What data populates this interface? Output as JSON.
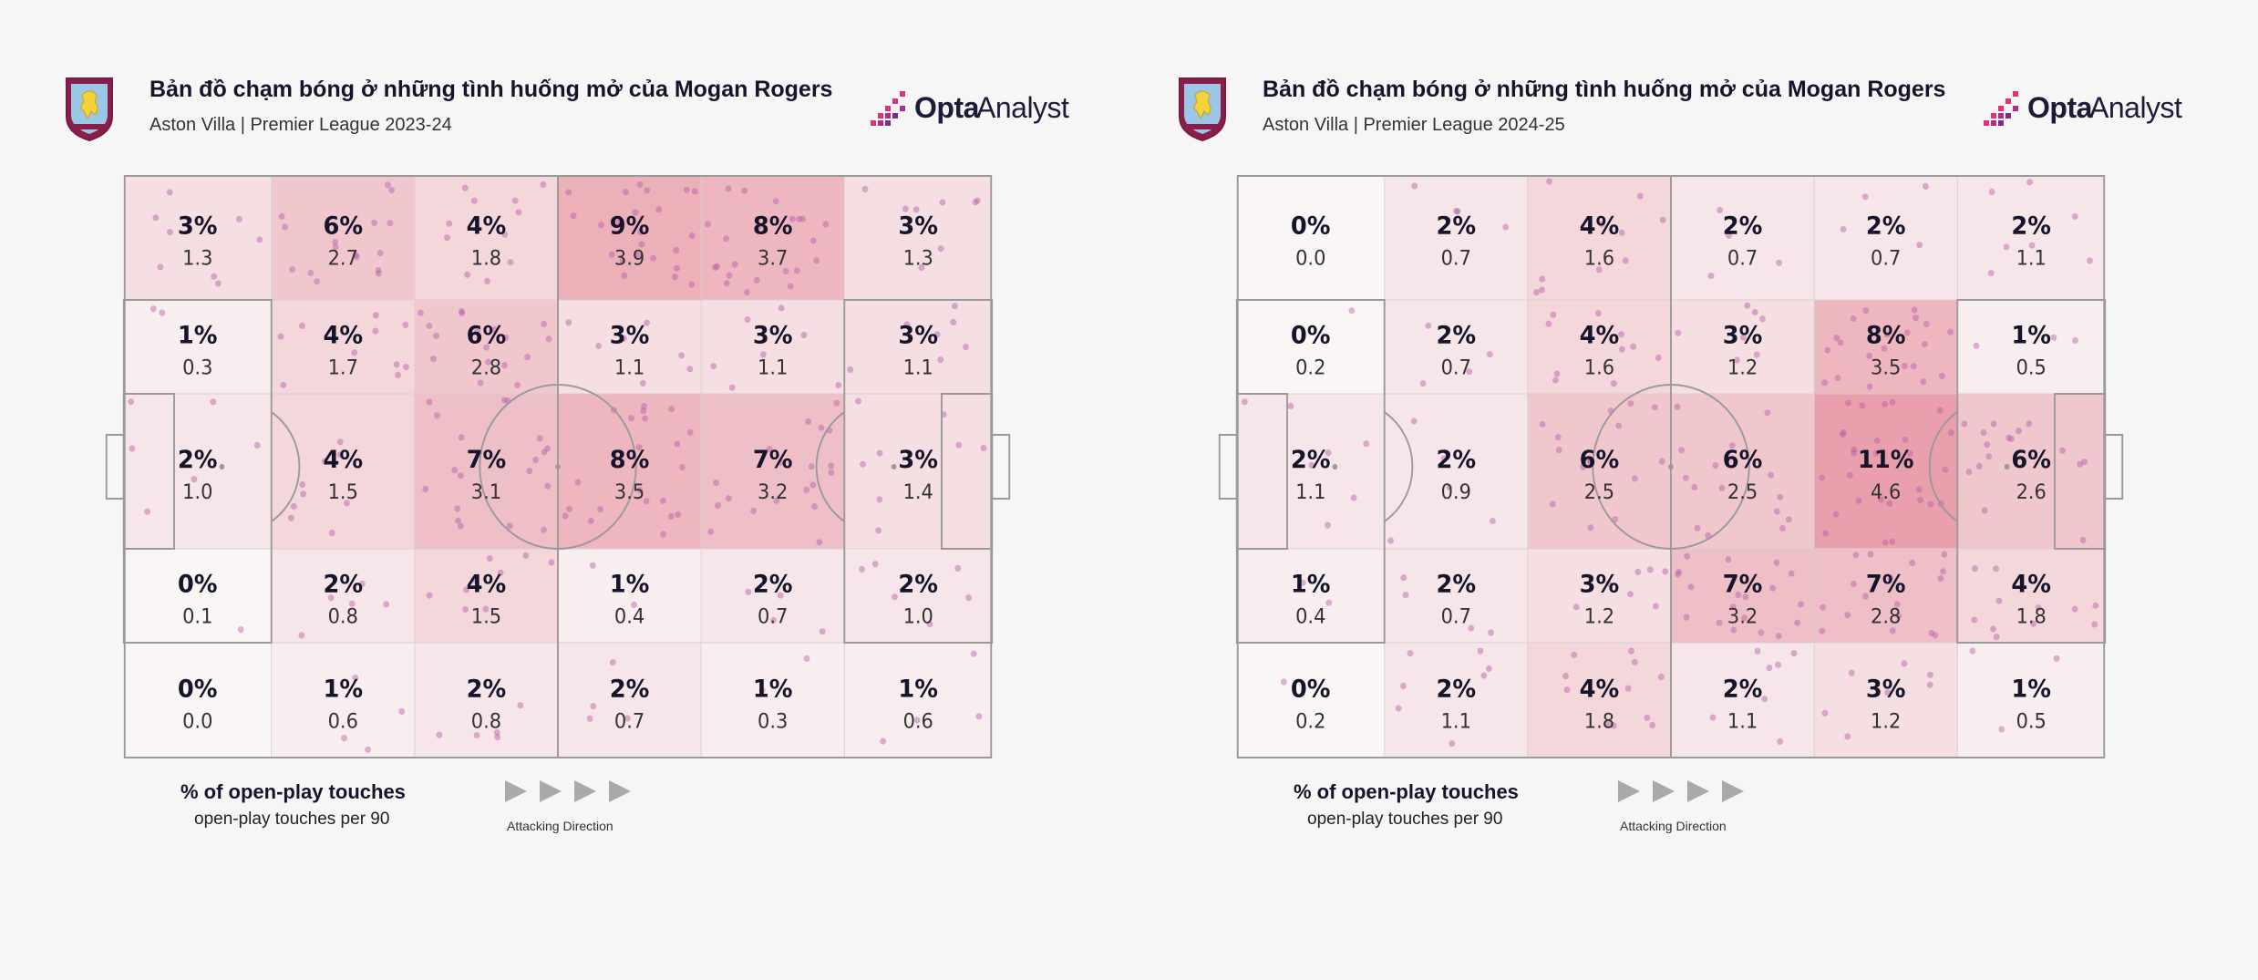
{
  "chart_data": [
    {
      "type": "heatmap",
      "title": "Bản đồ chạm bóng ở những tình huống mở của Mogan Rogers",
      "subtitle": "Aston Villa | Premier League 2023-24",
      "brand": "Opta Analyst",
      "brand_words": [
        "Opta",
        "Analyst"
      ],
      "legend_main": "% of open-play touches",
      "legend_sub": "open-play touches per 90",
      "direction_label": "Attacking Direction",
      "rows": [
        {
          "pct": [
            "3%",
            "6%",
            "4%",
            "9%",
            "8%",
            "3%"
          ],
          "per90": [
            "1.3",
            "2.7",
            "1.8",
            "3.9",
            "3.7",
            "1.3"
          ]
        },
        {
          "pct": [
            "1%",
            "4%",
            "6%",
            "3%",
            "3%",
            "3%"
          ],
          "per90": [
            "0.3",
            "1.7",
            "2.8",
            "1.1",
            "1.1",
            "1.1"
          ]
        },
        {
          "pct": [
            "2%",
            "4%",
            "7%",
            "8%",
            "7%",
            "3%"
          ],
          "per90": [
            "1.0",
            "1.5",
            "3.1",
            "3.5",
            "3.2",
            "1.4"
          ]
        },
        {
          "pct": [
            "0%",
            "2%",
            "4%",
            "1%",
            "2%",
            "2%"
          ],
          "per90": [
            "0.1",
            "0.8",
            "1.5",
            "0.4",
            "0.7",
            "1.0"
          ]
        },
        {
          "pct": [
            "0%",
            "1%",
            "2%",
            "2%",
            "1%",
            "1%"
          ],
          "per90": [
            "0.0",
            "0.6",
            "0.8",
            "0.7",
            "0.3",
            "0.6"
          ]
        }
      ]
    },
    {
      "type": "heatmap",
      "title": "Bản đồ chạm bóng ở những tình huống mở của Mogan Rogers",
      "subtitle": "Aston Villa | Premier League 2024-25",
      "brand": "Opta Analyst",
      "brand_words": [
        "Opta",
        "Analyst"
      ],
      "legend_main": "% of open-play touches",
      "legend_sub": "open-play touches per 90",
      "direction_label": "Attacking Direction",
      "rows": [
        {
          "pct": [
            "0%",
            "2%",
            "4%",
            "2%",
            "2%",
            "2%"
          ],
          "per90": [
            "0.0",
            "0.7",
            "1.6",
            "0.7",
            "0.7",
            "1.1"
          ]
        },
        {
          "pct": [
            "0%",
            "2%",
            "4%",
            "3%",
            "8%",
            "1%"
          ],
          "per90": [
            "0.2",
            "0.7",
            "1.6",
            "1.2",
            "3.5",
            "0.5"
          ]
        },
        {
          "pct": [
            "2%",
            "2%",
            "6%",
            "6%",
            "11%",
            "6%"
          ],
          "per90": [
            "1.1",
            "0.9",
            "2.5",
            "2.5",
            "4.6",
            "2.6"
          ]
        },
        {
          "pct": [
            "1%",
            "2%",
            "3%",
            "7%",
            "7%",
            "4%"
          ],
          "per90": [
            "0.4",
            "0.7",
            "1.2",
            "3.2",
            "2.8",
            "1.8"
          ]
        },
        {
          "pct": [
            "0%",
            "2%",
            "4%",
            "2%",
            "3%",
            "1%"
          ],
          "per90": [
            "0.2",
            "1.1",
            "1.8",
            "1.1",
            "1.2",
            "0.5"
          ]
        }
      ]
    }
  ]
}
